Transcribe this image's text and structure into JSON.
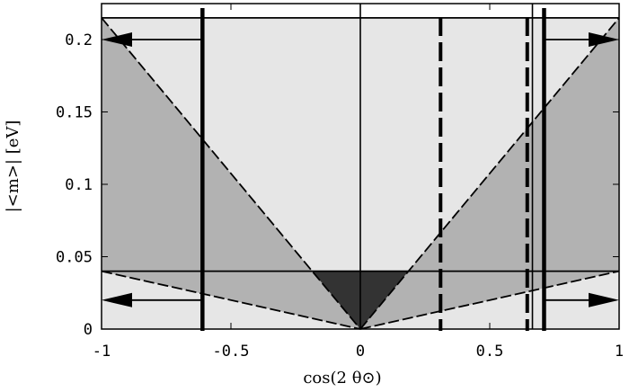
{
  "chart_data": {
    "type": "area",
    "xlabel": "cos(2 θ⊙)",
    "ylabel": "|<m>| [eV]",
    "xlim": [
      -1,
      1
    ],
    "ylim": [
      0,
      0.215
    ],
    "x_ticks": [
      {
        "value": -1,
        "label": "-1"
      },
      {
        "value": -0.5,
        "label": "-0.5"
      },
      {
        "value": 0,
        "label": "0"
      },
      {
        "value": 0.5,
        "label": "0.5"
      },
      {
        "value": 1,
        "label": "1"
      }
    ],
    "y_ticks": [
      {
        "value": 0,
        "label": "0"
      },
      {
        "value": 0.05,
        "label": "0.05"
      },
      {
        "value": 0.1,
        "label": "0.1"
      },
      {
        "value": 0.15,
        "label": "0.15"
      },
      {
        "value": 0.2,
        "label": "0.2"
      }
    ],
    "regions": [
      {
        "id": "outer-light",
        "color": "#e6e6e6",
        "points": [
          [
            -1,
            0.215
          ],
          [
            1,
            0.215
          ],
          [
            1,
            0
          ],
          [
            -1,
            0
          ]
        ]
      },
      {
        "id": "mid-gray",
        "color": "#b2b2b2",
        "points": [
          [
            -1,
            0.215
          ],
          [
            1,
            0.215
          ],
          [
            1,
            0.04
          ],
          [
            0,
            0
          ],
          [
            -1,
            0.04
          ]
        ]
      },
      {
        "id": "light-v",
        "color": "#e6e6e6",
        "points": [
          [
            -1,
            0.215
          ],
          [
            1,
            0.215
          ],
          [
            0.186,
            0.04
          ],
          [
            -0.186,
            0.04
          ]
        ]
      },
      {
        "id": "dark-triangle",
        "color": "#333333",
        "points": [
          [
            -0.186,
            0.04
          ],
          [
            0.186,
            0.04
          ],
          [
            0,
            0
          ]
        ]
      }
    ],
    "dashed_lines": [
      {
        "points": [
          [
            -1,
            0.215
          ],
          [
            0,
            0
          ]
        ]
      },
      {
        "points": [
          [
            0,
            0
          ],
          [
            1,
            0.215
          ]
        ]
      },
      {
        "points": [
          [
            -1,
            0.04
          ],
          [
            0,
            0
          ]
        ]
      },
      {
        "points": [
          [
            0,
            0
          ],
          [
            1,
            0.04
          ]
        ]
      }
    ],
    "horizontal_lines": [
      {
        "y": 0.215,
        "x": [
          -1,
          1
        ]
      },
      {
        "y": 0.04,
        "x": [
          -1,
          1
        ]
      }
    ],
    "vertical_lines": [
      {
        "x": 0,
        "style": "thin-solid"
      },
      {
        "x": -0.61,
        "style": "thick-solid"
      },
      {
        "x": 0.71,
        "style": "thick-solid"
      },
      {
        "x": 0.665,
        "style": "thin-solid"
      },
      {
        "x": 0.31,
        "style": "thick-dashed"
      },
      {
        "x": 0.645,
        "style": "thick-dashed"
      }
    ],
    "arrows": [
      {
        "from_x": -0.61,
        "to_x": -1,
        "y": 0.2
      },
      {
        "from_x": 0.71,
        "to_x": 1,
        "y": 0.2
      },
      {
        "from_x": -0.61,
        "to_x": -1,
        "y": 0.02
      },
      {
        "from_x": 0.71,
        "to_x": 1,
        "y": 0.02
      }
    ]
  }
}
